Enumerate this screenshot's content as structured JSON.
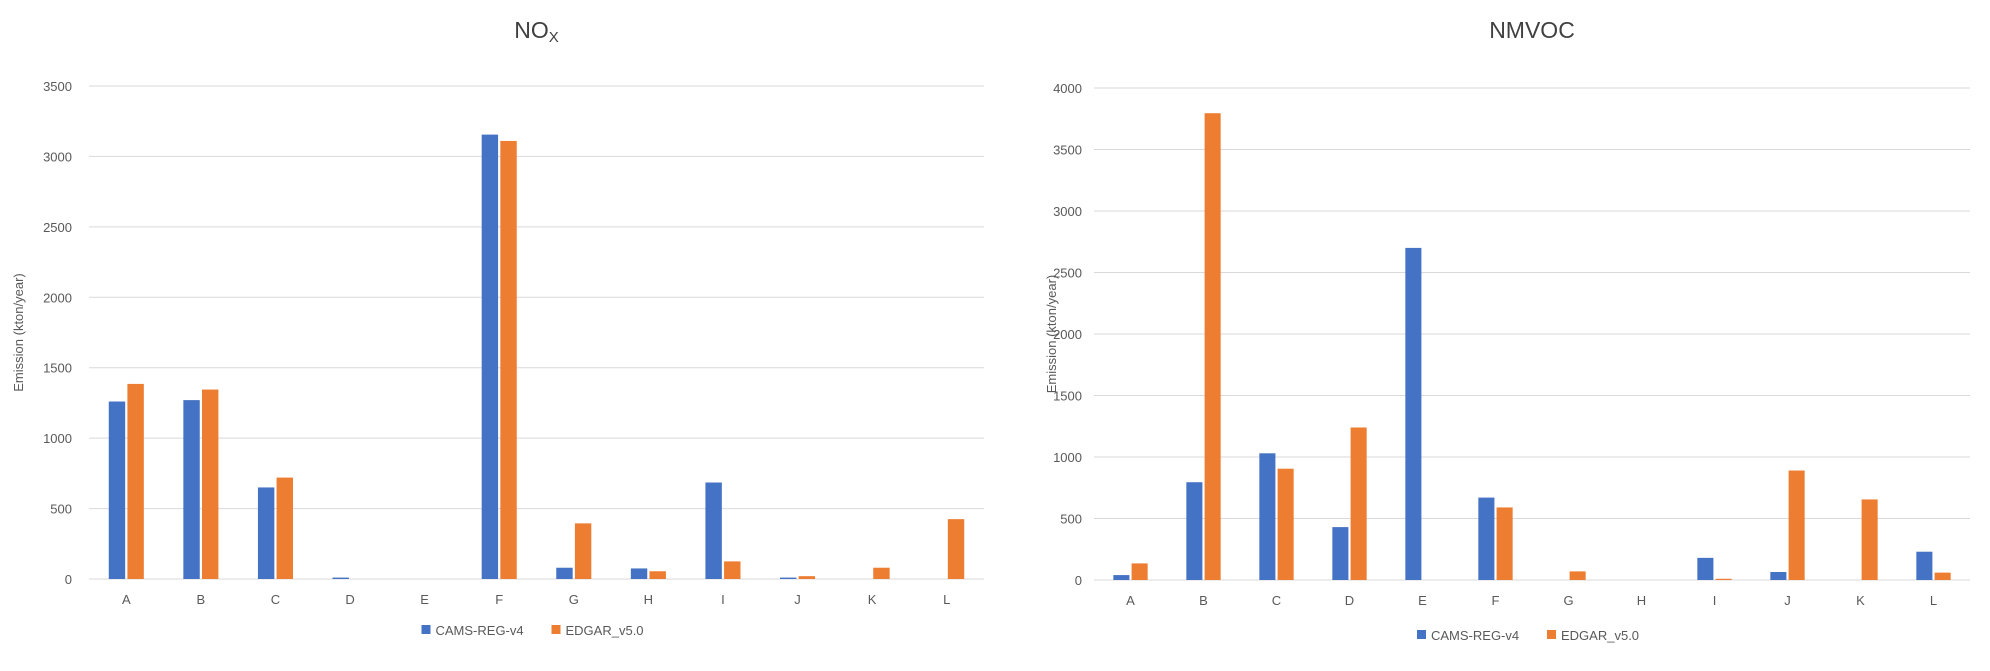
{
  "colors": {
    "series0": "#4472C4",
    "series1": "#ED7D31",
    "grid": "#D9D9D9"
  },
  "chart_data": [
    {
      "type": "bar",
      "title": "NO",
      "title_subscript": "X",
      "xlabel": "",
      "ylabel": "Emission (kton/year)",
      "ylim": [
        0,
        3500
      ],
      "yticks": [
        0,
        500,
        1000,
        1500,
        2000,
        2500,
        3000,
        3500
      ],
      "grid": true,
      "legend": "bottom",
      "categories": [
        "A",
        "B",
        "C",
        "D",
        "E",
        "F",
        "G",
        "H",
        "I",
        "J",
        "K",
        "L"
      ],
      "series": [
        {
          "name": "CAMS-REG-v4",
          "values": [
            1260,
            1270,
            650,
            10,
            0,
            3155,
            80,
            75,
            685,
            10,
            0,
            0
          ]
        },
        {
          "name": "EDGAR_v5.0",
          "values": [
            1385,
            1345,
            720,
            0,
            0,
            3110,
            395,
            55,
            125,
            20,
            80,
            425
          ]
        }
      ]
    },
    {
      "type": "bar",
      "title": "NMVOC",
      "title_subscript": "",
      "xlabel": "",
      "ylabel": "Emission (kton/year)",
      "ylim": [
        0,
        4000
      ],
      "yticks": [
        0,
        500,
        1000,
        1500,
        2000,
        2500,
        3000,
        3500,
        4000
      ],
      "grid": true,
      "legend": "bottom",
      "categories": [
        "A",
        "B",
        "C",
        "D",
        "E",
        "F",
        "G",
        "H",
        "I",
        "J",
        "K",
        "L"
      ],
      "series": [
        {
          "name": "CAMS-REG-v4",
          "values": [
            40,
            795,
            1030,
            430,
            2700,
            670,
            0,
            0,
            180,
            65,
            0,
            230
          ]
        },
        {
          "name": "EDGAR_v5.0",
          "values": [
            135,
            3795,
            905,
            1240,
            0,
            590,
            70,
            0,
            10,
            890,
            655,
            60
          ]
        }
      ]
    }
  ]
}
